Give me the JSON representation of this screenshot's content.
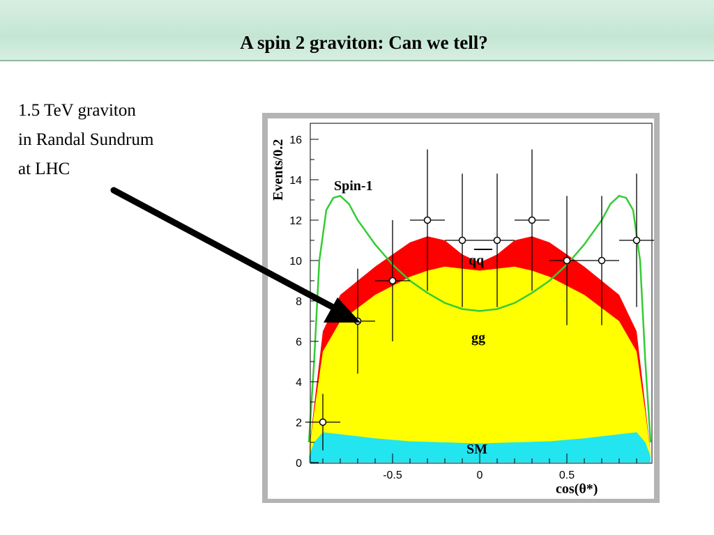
{
  "slide": {
    "title": "A spin 2 graviton: Can we tell?",
    "note_lines": [
      "1.5 TeV graviton",
      "in Randal Sundrum",
      "at LHC"
    ]
  },
  "colors": {
    "header_bg": "#c4e6d3",
    "sm": "#22e5f0",
    "gg": "#ffff00",
    "qq": "#ff0000",
    "spin1": "#33cc33",
    "arrow": "#000000"
  },
  "chart_data": {
    "type": "area",
    "xlabel": "cos(θ*)",
    "ylabel": "Events/0.2",
    "xlim": [
      -0.98,
      0.98
    ],
    "ylim": [
      0,
      17
    ],
    "x_ticks": [
      "-0.5",
      "0",
      "0.5"
    ],
    "y_ticks": [
      "0",
      "2",
      "4",
      "6",
      "8",
      "10",
      "12",
      "14",
      "16"
    ],
    "grid": false,
    "region_labels": [
      "SM",
      "gg",
      "qq",
      "Spin-1"
    ],
    "series": [
      {
        "name": "SM",
        "x": [
          -0.98,
          -0.95,
          -0.9,
          -0.8,
          -0.6,
          -0.4,
          -0.2,
          0,
          0.2,
          0.4,
          0.6,
          0.8,
          0.9,
          0.95,
          0.98
        ],
        "y": [
          0.3,
          1.0,
          1.5,
          1.4,
          1.2,
          1.05,
          1.0,
          0.95,
          1.0,
          1.05,
          1.2,
          1.4,
          1.5,
          1.0,
          0.3
        ]
      },
      {
        "name": "gg",
        "x": [
          -0.98,
          -0.95,
          -0.9,
          -0.8,
          -0.6,
          -0.4,
          -0.3,
          -0.2,
          0,
          0.2,
          0.3,
          0.4,
          0.6,
          0.8,
          0.9,
          0.95,
          0.98
        ],
        "y": [
          0.5,
          2.5,
          5.5,
          7.0,
          8.3,
          9.2,
          9.5,
          9.7,
          9.5,
          9.7,
          9.5,
          9.2,
          8.3,
          7.0,
          5.5,
          2.5,
          0.5
        ]
      },
      {
        "name": "qq",
        "x": [
          -0.98,
          -0.95,
          -0.9,
          -0.8,
          -0.6,
          -0.5,
          -0.4,
          -0.3,
          -0.2,
          -0.1,
          0,
          0.1,
          0.2,
          0.3,
          0.4,
          0.5,
          0.6,
          0.8,
          0.9,
          0.95,
          0.98
        ],
        "y": [
          0.5,
          2.8,
          6.5,
          8.3,
          9.7,
          10.3,
          10.9,
          11.2,
          11.0,
          10.3,
          9.9,
          10.3,
          11.0,
          11.2,
          10.9,
          10.3,
          9.7,
          8.3,
          6.5,
          2.8,
          0.5
        ]
      },
      {
        "name": "Spin-1",
        "x": [
          -0.98,
          -0.95,
          -0.92,
          -0.88,
          -0.84,
          -0.8,
          -0.75,
          -0.7,
          -0.6,
          -0.5,
          -0.4,
          -0.3,
          -0.2,
          -0.1,
          0,
          0.1,
          0.2,
          0.3,
          0.4,
          0.5,
          0.6,
          0.7,
          0.75,
          0.8,
          0.84,
          0.88,
          0.92,
          0.95,
          0.98
        ],
        "y": [
          1.0,
          5.0,
          10.0,
          12.5,
          13.1,
          13.2,
          12.8,
          12.0,
          10.8,
          9.8,
          9.0,
          8.4,
          7.9,
          7.6,
          7.5,
          7.6,
          7.9,
          8.4,
          9.0,
          9.8,
          10.8,
          12.0,
          12.8,
          13.2,
          13.1,
          12.5,
          10.0,
          5.0,
          1.0
        ]
      },
      {
        "name": "data",
        "x": [
          -0.9,
          -0.7,
          -0.5,
          -0.3,
          -0.1,
          0.1,
          0.3,
          0.5,
          0.7,
          0.9
        ],
        "y": [
          2,
          7,
          9,
          12,
          11,
          11,
          12,
          10,
          10,
          11
        ],
        "yerr": [
          1.4,
          2.6,
          3.0,
          3.5,
          3.3,
          3.3,
          3.5,
          3.2,
          3.2,
          3.3
        ],
        "xerr": [
          0.1,
          0.1,
          0.1,
          0.1,
          0.1,
          0.1,
          0.1,
          0.1,
          0.1,
          0.1
        ]
      }
    ]
  }
}
